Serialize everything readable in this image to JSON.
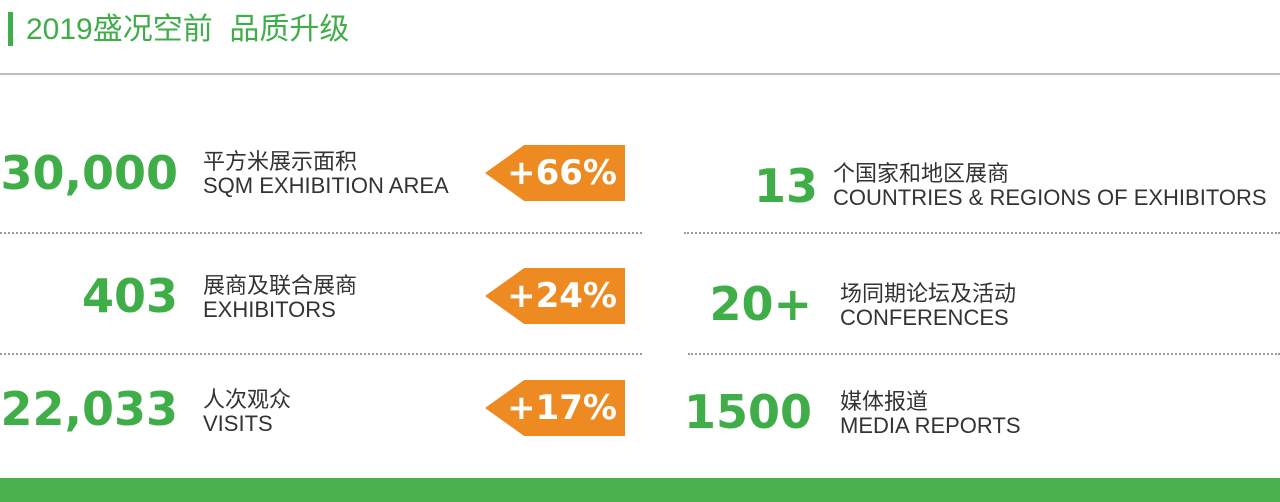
{
  "header": {
    "title": "2019盛况空前  品质升级"
  },
  "left_stats": [
    {
      "number": "30,000",
      "label_zh": "平方米展示面积",
      "label_en": "SQM EXHIBITION AREA",
      "change": "+66%"
    },
    {
      "number": "403",
      "label_zh": "展商及联合展商",
      "label_en": "EXHIBITORS",
      "change": "+24%"
    },
    {
      "number": "22,033",
      "label_zh": "人次观众",
      "label_en": "VISITS",
      "change": "+17%"
    }
  ],
  "right_stats": [
    {
      "number": "13",
      "label_zh": "个国家和地区展商",
      "label_en": "COUNTRIES & REGIONS OF EXHIBITORS"
    },
    {
      "number": "20+",
      "label_zh": "场同期论坛及活动",
      "label_en": "CONFERENCES"
    },
    {
      "number": "1500",
      "label_zh": "媒体报道",
      "label_en": "MEDIA REPORTS"
    }
  ],
  "colors": {
    "green": "#3fae49",
    "orange": "#ee8a22",
    "footer": "#4cb050"
  }
}
